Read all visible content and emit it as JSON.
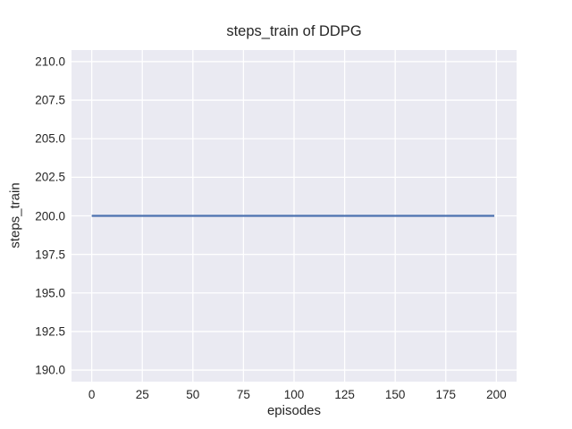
{
  "chart_data": {
    "type": "line",
    "title": "steps_train of DDPG",
    "xlabel": "episodes",
    "ylabel": "steps_train",
    "xlim": [
      -10,
      210
    ],
    "ylim": [
      189.25,
      210.75
    ],
    "grid": true,
    "legend_position": "none",
    "x_ticks": [
      0,
      25,
      50,
      75,
      100,
      125,
      150,
      175,
      200
    ],
    "x_tick_labels": [
      "0",
      "25",
      "50",
      "75",
      "100",
      "125",
      "150",
      "175",
      "200"
    ],
    "y_ticks": [
      190.0,
      192.5,
      195.0,
      197.5,
      200.0,
      202.5,
      205.0,
      207.5,
      210.0
    ],
    "y_tick_labels": [
      "190.0",
      "192.5",
      "195.0",
      "197.5",
      "200.0",
      "202.5",
      "205.0",
      "207.5",
      "210.0"
    ],
    "series": [
      {
        "name": "steps_train",
        "x": [
          0,
          199
        ],
        "y": [
          200,
          200
        ]
      }
    ],
    "colors": {
      "figure_background": "#ffffff",
      "plot_background": "#eaeaf2",
      "gridline": "#ffffff",
      "line": "#4c72b0",
      "text": "#262626"
    }
  }
}
